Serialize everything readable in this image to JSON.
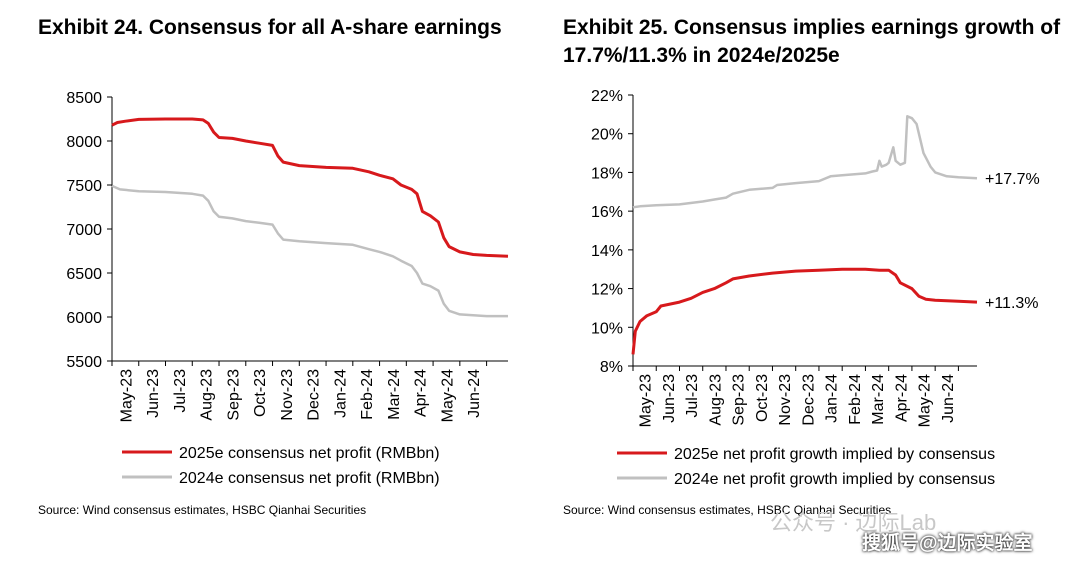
{
  "exhibit24": {
    "title": "Exhibit 24. Consensus for all A-share earnings",
    "source": "Source: Wind consensus estimates, HSBC Qianhai Securities",
    "chart_data": {
      "type": "line",
      "x_labels": [
        "May-23",
        "Jun-23",
        "Jul-23",
        "Aug-23",
        "Sep-23",
        "Oct-23",
        "Nov-23",
        "Dec-23",
        "Jan-24",
        "Feb-24",
        "Mar-24",
        "Apr-24",
        "May-24",
        "Jun-24"
      ],
      "y_ticks": [
        "5500",
        "6000",
        "6500",
        "7000",
        "7500",
        "8000",
        "8500"
      ],
      "ylim": [
        5500,
        8500
      ],
      "xlim": [
        0,
        14.8
      ],
      "series": [
        {
          "name": "2025e consensus net profit (RMBbn)",
          "color": "#d7191c",
          "points": [
            [
              0,
              8180
            ],
            [
              0.2,
              8210
            ],
            [
              0.5,
              8225
            ],
            [
              1.0,
              8245
            ],
            [
              2.0,
              8250
            ],
            [
              3.0,
              8250
            ],
            [
              3.4,
              8240
            ],
            [
              3.6,
              8200
            ],
            [
              3.8,
              8100
            ],
            [
              4.0,
              8040
            ],
            [
              4.5,
              8030
            ],
            [
              5.0,
              8000
            ],
            [
              5.5,
              7975
            ],
            [
              6.0,
              7950
            ],
            [
              6.2,
              7830
            ],
            [
              6.4,
              7760
            ],
            [
              7.0,
              7720
            ],
            [
              8.0,
              7700
            ],
            [
              9.0,
              7690
            ],
            [
              9.6,
              7650
            ],
            [
              10.0,
              7610
            ],
            [
              10.5,
              7570
            ],
            [
              10.8,
              7500
            ],
            [
              11.2,
              7450
            ],
            [
              11.4,
              7400
            ],
            [
              11.6,
              7200
            ],
            [
              11.9,
              7150
            ],
            [
              12.2,
              7080
            ],
            [
              12.4,
              6900
            ],
            [
              12.6,
              6800
            ],
            [
              13.0,
              6740
            ],
            [
              13.5,
              6710
            ],
            [
              14.0,
              6700
            ],
            [
              14.8,
              6690
            ]
          ]
        },
        {
          "name": "2024e consensus net profit (RMBbn)",
          "color": "#c0c0c0",
          "points": [
            [
              0,
              7490
            ],
            [
              0.3,
              7450
            ],
            [
              1.0,
              7430
            ],
            [
              2.0,
              7420
            ],
            [
              3.0,
              7400
            ],
            [
              3.4,
              7380
            ],
            [
              3.6,
              7320
            ],
            [
              3.8,
              7200
            ],
            [
              4.0,
              7140
            ],
            [
              4.5,
              7120
            ],
            [
              5.0,
              7090
            ],
            [
              5.5,
              7070
            ],
            [
              6.0,
              7050
            ],
            [
              6.2,
              6950
            ],
            [
              6.4,
              6880
            ],
            [
              7.0,
              6860
            ],
            [
              8.0,
              6840
            ],
            [
              9.0,
              6820
            ],
            [
              9.6,
              6770
            ],
            [
              10.0,
              6740
            ],
            [
              10.5,
              6690
            ],
            [
              10.8,
              6640
            ],
            [
              11.2,
              6580
            ],
            [
              11.4,
              6500
            ],
            [
              11.6,
              6380
            ],
            [
              11.9,
              6350
            ],
            [
              12.2,
              6300
            ],
            [
              12.4,
              6150
            ],
            [
              12.6,
              6070
            ],
            [
              13.0,
              6030
            ],
            [
              13.5,
              6020
            ],
            [
              14.0,
              6010
            ],
            [
              14.8,
              6010
            ]
          ]
        }
      ]
    }
  },
  "exhibit25": {
    "title": "Exhibit 25. Consensus implies earnings growth of 17.7%/11.3% in 2024e/2025e",
    "source": "Source: Wind consensus estimates, HSBC Qianhai Securities",
    "chart_data": {
      "type": "line",
      "x_labels": [
        "May-23",
        "Jun-23",
        "Jul-23",
        "Aug-23",
        "Sep-23",
        "Oct-23",
        "Nov-23",
        "Dec-23",
        "Jan-24",
        "Feb-24",
        "Mar-24",
        "Apr-24",
        "May-24",
        "Jun-24"
      ],
      "y_ticks": [
        "8%",
        "10%",
        "12%",
        "14%",
        "16%",
        "18%",
        "20%",
        "22%"
      ],
      "ylim": [
        8,
        22
      ],
      "xlim": [
        0,
        14.8
      ],
      "series": [
        {
          "name": "2025e net profit growth implied by consensus",
          "color": "#d7191c",
          "end_label": "+11.3%",
          "points": [
            [
              0,
              8.6
            ],
            [
              0.1,
              9.8
            ],
            [
              0.3,
              10.3
            ],
            [
              0.6,
              10.6
            ],
            [
              1.0,
              10.8
            ],
            [
              1.2,
              11.1
            ],
            [
              2.0,
              11.3
            ],
            [
              2.5,
              11.5
            ],
            [
              3.0,
              11.8
            ],
            [
              3.5,
              12.0
            ],
            [
              4.0,
              12.3
            ],
            [
              4.3,
              12.5
            ],
            [
              5.0,
              12.65
            ],
            [
              6.0,
              12.8
            ],
            [
              7.0,
              12.9
            ],
            [
              8.0,
              12.95
            ],
            [
              9.0,
              13.0
            ],
            [
              10.0,
              13.0
            ],
            [
              10.6,
              12.95
            ],
            [
              11.0,
              12.95
            ],
            [
              11.3,
              12.7
            ],
            [
              11.5,
              12.3
            ],
            [
              12.0,
              12.0
            ],
            [
              12.3,
              11.6
            ],
            [
              12.6,
              11.45
            ],
            [
              13.0,
              11.4
            ],
            [
              14.0,
              11.35
            ],
            [
              14.8,
              11.3
            ]
          ]
        },
        {
          "name": "2024e net profit growth implied by consensus",
          "color": "#c0c0c0",
          "end_label": "+17.7%",
          "points": [
            [
              0,
              16.2
            ],
            [
              0.3,
              16.25
            ],
            [
              1.0,
              16.3
            ],
            [
              2.0,
              16.35
            ],
            [
              3.0,
              16.5
            ],
            [
              3.5,
              16.6
            ],
            [
              4.0,
              16.7
            ],
            [
              4.3,
              16.9
            ],
            [
              5.0,
              17.1
            ],
            [
              6.0,
              17.2
            ],
            [
              6.2,
              17.35
            ],
            [
              7.0,
              17.45
            ],
            [
              8.0,
              17.55
            ],
            [
              8.5,
              17.8
            ],
            [
              9.0,
              17.85
            ],
            [
              10.0,
              17.95
            ],
            [
              10.3,
              18.05
            ],
            [
              10.5,
              18.1
            ],
            [
              10.6,
              18.6
            ],
            [
              10.7,
              18.3
            ],
            [
              10.9,
              18.4
            ],
            [
              11.0,
              18.5
            ],
            [
              11.2,
              19.3
            ],
            [
              11.3,
              18.6
            ],
            [
              11.5,
              18.4
            ],
            [
              11.7,
              18.5
            ],
            [
              11.8,
              20.9
            ],
            [
              12.0,
              20.8
            ],
            [
              12.2,
              20.5
            ],
            [
              12.5,
              19.0
            ],
            [
              12.8,
              18.3
            ],
            [
              13.0,
              18.0
            ],
            [
              13.5,
              17.8
            ],
            [
              14.0,
              17.75
            ],
            [
              14.8,
              17.7
            ]
          ]
        }
      ]
    }
  },
  "watermark": {
    "line1": "公众号 · 边际Lab",
    "line2": "搜狐号@边际实验室"
  }
}
